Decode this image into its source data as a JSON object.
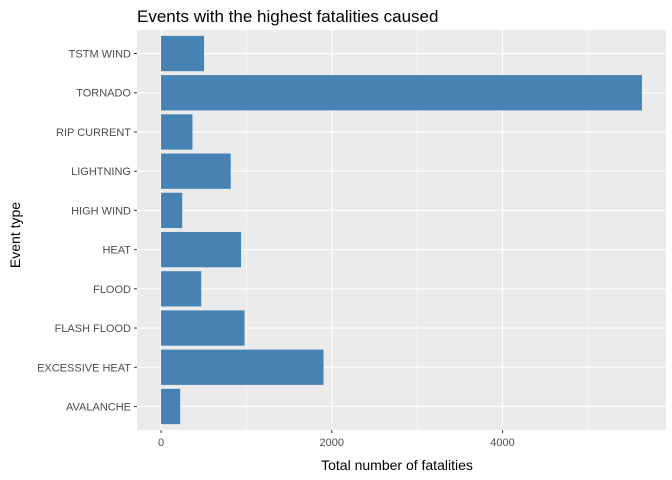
{
  "chart_data": {
    "type": "bar",
    "orientation": "horizontal",
    "title": "Events with the highest fatalities caused",
    "xlabel": "Total number of fatalities",
    "ylabel": "Event type",
    "categories": [
      "AVALANCHE",
      "EXCESSIVE HEAT",
      "FLASH FLOOD",
      "FLOOD",
      "HEAT",
      "HIGH WIND",
      "LIGHTNING",
      "RIP CURRENT",
      "TORNADO",
      "TSTM WIND"
    ],
    "values": [
      224,
      1903,
      978,
      470,
      937,
      248,
      816,
      368,
      5633,
      504
    ],
    "xticks": [
      "0",
      "2000",
      "4000"
    ],
    "xlim": [
      -281.65,
      5914.65
    ],
    "bar_color": "#4682b4",
    "panel_background": "#ebebeb",
    "grid": true
  }
}
